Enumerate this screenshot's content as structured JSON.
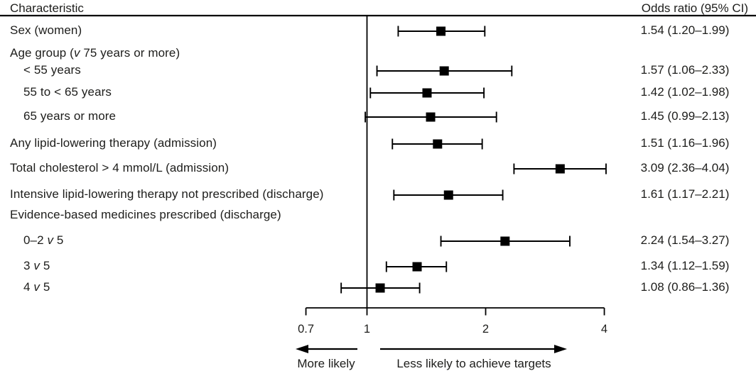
{
  "header": {
    "characteristic": "Characteristic",
    "odds_ratio": "Odds ratio (95% CI)"
  },
  "chart_data": {
    "type": "scatter",
    "variant": "forest-plot",
    "x_scale": "log",
    "x_axis": {
      "range": [
        0.7,
        4
      ],
      "ticks": [
        "0.7",
        "1",
        "2",
        "4"
      ],
      "tick_values": [
        0.7,
        1,
        2,
        4
      ],
      "reference_line": 1
    },
    "direction_labels": {
      "left": "More likely",
      "right": "Less likely to achieve targets"
    },
    "marker_color": "#000000",
    "rows": [
      {
        "label": "Sex (women)",
        "indent": 0,
        "or": 1.54,
        "lo": 1.2,
        "hi": 1.99,
        "ci_text": "1.54 (1.20–1.99)"
      },
      {
        "label": "Age group (v 75 years or more)",
        "indent": 0,
        "or": null,
        "lo": null,
        "hi": null,
        "ci_text": ""
      },
      {
        "label": "< 55 years",
        "indent": 1,
        "or": 1.57,
        "lo": 1.06,
        "hi": 2.33,
        "ci_text": "1.57 (1.06–2.33)"
      },
      {
        "label": "55 to < 65 years",
        "indent": 1,
        "or": 1.42,
        "lo": 1.02,
        "hi": 1.98,
        "ci_text": "1.42 (1.02–1.98)"
      },
      {
        "label": "65 years or more",
        "indent": 1,
        "or": 1.45,
        "lo": 0.99,
        "hi": 2.13,
        "ci_text": "1.45 (0.99–2.13)"
      },
      {
        "label": "Any lipid-lowering therapy (admission)",
        "indent": 0,
        "or": 1.51,
        "lo": 1.16,
        "hi": 1.96,
        "ci_text": "1.51 (1.16–1.96)"
      },
      {
        "label": "Total cholesterol > 4 mmol/L (admission)",
        "indent": 0,
        "or": 3.09,
        "lo": 2.36,
        "hi": 4.04,
        "ci_text": "3.09 (2.36–4.04)"
      },
      {
        "label": "Intensive lipid-lowering therapy not prescribed (discharge)",
        "indent": 0,
        "or": 1.61,
        "lo": 1.17,
        "hi": 2.21,
        "ci_text": "1.61 (1.17–2.21)"
      },
      {
        "label": "Evidence-based medicines prescribed (discharge)",
        "indent": 0,
        "or": null,
        "lo": null,
        "hi": null,
        "ci_text": ""
      },
      {
        "label": "0–2 v 5",
        "indent": 1,
        "or": 2.24,
        "lo": 1.54,
        "hi": 3.27,
        "ci_text": "2.24 (1.54–3.27)"
      },
      {
        "label": "3 v 5",
        "indent": 1,
        "or": 1.34,
        "lo": 1.12,
        "hi": 1.59,
        "ci_text": "1.34 (1.12–1.59)"
      },
      {
        "label": "4 v 5",
        "indent": 1,
        "or": 1.08,
        "lo": 0.86,
        "hi": 1.36,
        "ci_text": "1.08 (0.86–1.36)"
      }
    ]
  }
}
